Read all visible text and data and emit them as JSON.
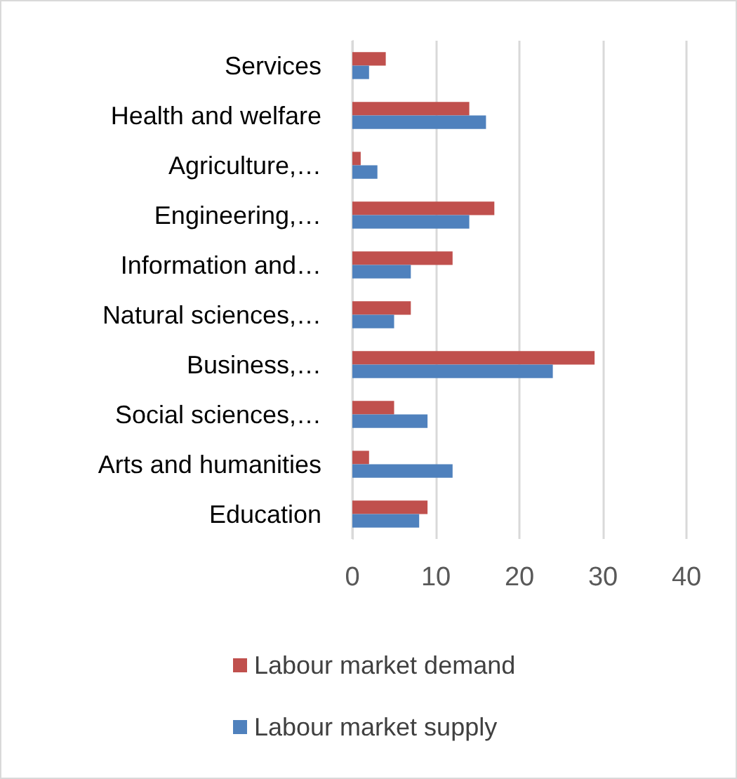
{
  "chart_data": {
    "type": "bar",
    "orientation": "horizontal",
    "categories": [
      "Services",
      "Health and welfare",
      "Agriculture,…",
      "Engineering,…",
      "Information and…",
      "Natural sciences,…",
      "Business,…",
      "Social sciences,…",
      "Arts and humanities",
      "Education"
    ],
    "series": [
      {
        "name": "Labour market demand",
        "color": "#c0504d",
        "values": [
          4,
          14,
          1,
          17,
          12,
          7,
          29,
          5,
          2,
          9
        ]
      },
      {
        "name": "Labour market supply",
        "color": "#4f81bd",
        "values": [
          2,
          16,
          3,
          14,
          7,
          5,
          24,
          9,
          12,
          8
        ]
      }
    ],
    "xlim": [
      0,
      40
    ],
    "xticks": [
      0,
      10,
      20,
      30,
      40
    ],
    "grid": "x",
    "legend": "bottom"
  }
}
